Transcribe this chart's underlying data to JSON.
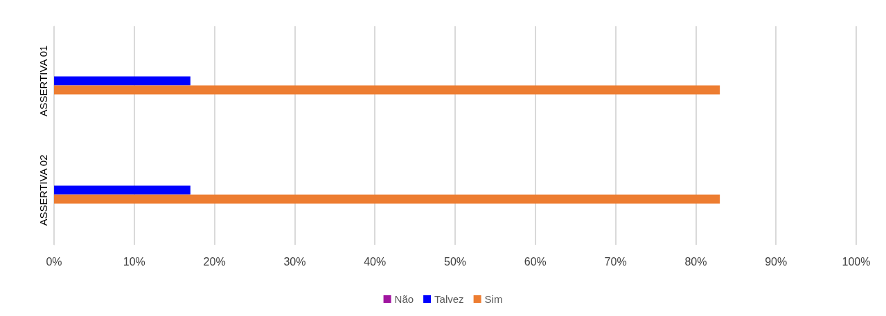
{
  "chart_data": {
    "type": "bar",
    "orientation": "horizontal",
    "categories": [
      "ASSERTIVA 01",
      "ASSERTIVA 02"
    ],
    "series": [
      {
        "name": "Não",
        "color": "#a0159f",
        "values": [
          0,
          0
        ]
      },
      {
        "name": "Talvez",
        "color": "#0000ff",
        "values": [
          17,
          17
        ]
      },
      {
        "name": "Sim",
        "color": "#ed7d31",
        "values": [
          83,
          83
        ]
      }
    ],
    "xlim": [
      0,
      100
    ],
    "xticks": [
      {
        "value": 0,
        "label": "0%"
      },
      {
        "value": 10,
        "label": "10%"
      },
      {
        "value": 20,
        "label": "20%"
      },
      {
        "value": 30,
        "label": "30%"
      },
      {
        "value": 40,
        "label": "40%"
      },
      {
        "value": 50,
        "label": "50%"
      },
      {
        "value": 60,
        "label": "60%"
      },
      {
        "value": 70,
        "label": "70%"
      },
      {
        "value": 80,
        "label": "80%"
      },
      {
        "value": 90,
        "label": "90%"
      },
      {
        "value": 100,
        "label": "100%"
      }
    ],
    "grid": "x",
    "legend": "bottom"
  }
}
